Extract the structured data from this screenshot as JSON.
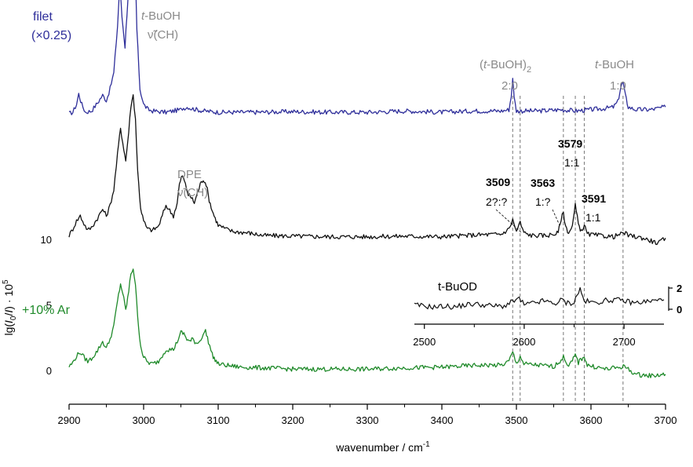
{
  "chart_data": {
    "type": "line",
    "xlabel": "wavenumber / cm",
    "xlabel_sup": "-1",
    "ylabel": {
      "pre": "lg(",
      "i0": "I",
      "sub0": "0",
      "mid": "/",
      "i": "I",
      "post": ") · 10",
      "sup": "5"
    },
    "xlim": [
      2900,
      3700
    ],
    "xticks": [
      "2900",
      "3000",
      "3100",
      "3200",
      "3300",
      "3400",
      "3500",
      "3600",
      "3700"
    ],
    "yticks": [
      "0",
      "5",
      "10"
    ],
    "grid": false,
    "series": [
      {
        "color": "#2e2e9a",
        "label_line1": "filet",
        "label_line2": "(×0.25)",
        "offset": 19.5,
        "points": [
          [
            2900,
            0.1
          ],
          [
            2905,
            0.2
          ],
          [
            2910,
            0.8
          ],
          [
            2913,
            1.6
          ],
          [
            2917,
            0.8
          ],
          [
            2922,
            0.2
          ],
          [
            2930,
            0.3
          ],
          [
            2938,
            0.9
          ],
          [
            2945,
            1.5
          ],
          [
            2950,
            1.1
          ],
          [
            2955,
            2.0
          ],
          [
            2960,
            3.2
          ],
          [
            2965,
            6.8
          ],
          [
            2968,
            10.0
          ],
          [
            2971,
            7.5
          ],
          [
            2975,
            5.2
          ],
          [
            2979,
            9.0
          ],
          [
            2983,
            12.8
          ],
          [
            2986,
            14.6
          ],
          [
            2988,
            13.0
          ],
          [
            2991,
            6.5
          ],
          [
            2995,
            2.0
          ],
          [
            3000,
            0.8
          ],
          [
            3006,
            0.4
          ],
          [
            3012,
            0.3
          ],
          [
            3030,
            0.2
          ],
          [
            3050,
            0.4
          ],
          [
            3052,
            0.5
          ],
          [
            3060,
            0.6
          ],
          [
            3063,
            0.5
          ],
          [
            3080,
            0.3
          ],
          [
            3100,
            0.2
          ],
          [
            3150,
            0.2
          ],
          [
            3200,
            0.25
          ],
          [
            3250,
            0.2
          ],
          [
            3300,
            0.2
          ],
          [
            3350,
            0.3
          ],
          [
            3400,
            0.2
          ],
          [
            3440,
            0.3
          ],
          [
            3480,
            0.3
          ],
          [
            3490,
            0.4
          ],
          [
            3493,
            1.4
          ],
          [
            3495,
            2.9
          ],
          [
            3497,
            1.3
          ],
          [
            3500,
            0.3
          ],
          [
            3530,
            0.3
          ],
          [
            3560,
            0.4
          ],
          [
            3580,
            0.3
          ],
          [
            3600,
            0.4
          ],
          [
            3620,
            0.5
          ],
          [
            3630,
            0.6
          ],
          [
            3636,
            1.0
          ],
          [
            3640,
            2.1
          ],
          [
            3643,
            2.5
          ],
          [
            3646,
            1.5
          ],
          [
            3650,
            0.6
          ],
          [
            3660,
            0.4
          ],
          [
            3680,
            0.4
          ],
          [
            3700,
            0.6
          ]
        ]
      },
      {
        "color": "#111111",
        "offset": 10,
        "points": [
          [
            2900,
            0.3
          ],
          [
            2905,
            0.8
          ],
          [
            2910,
            1.4
          ],
          [
            2915,
            1.8
          ],
          [
            2920,
            1.2
          ],
          [
            2925,
            0.7
          ],
          [
            2930,
            0.9
          ],
          [
            2938,
            1.6
          ],
          [
            2945,
            2.3
          ],
          [
            2950,
            1.8
          ],
          [
            2955,
            2.6
          ],
          [
            2960,
            3.8
          ],
          [
            2965,
            6.5
          ],
          [
            2969,
            8.5
          ],
          [
            2972,
            7.4
          ],
          [
            2976,
            6.0
          ],
          [
            2980,
            8.2
          ],
          [
            2983,
            10.2
          ],
          [
            2986,
            11.0
          ],
          [
            2989,
            9.2
          ],
          [
            2992,
            5.2
          ],
          [
            2996,
            2.4
          ],
          [
            3000,
            1.4
          ],
          [
            3005,
            0.8
          ],
          [
            3012,
            0.7
          ],
          [
            3020,
            1.0
          ],
          [
            3030,
            2.6
          ],
          [
            3040,
            1.8
          ],
          [
            3045,
            2.8
          ],
          [
            3048,
            4.2
          ],
          [
            3052,
            4.9
          ],
          [
            3056,
            4.2
          ],
          [
            3060,
            3.4
          ],
          [
            3064,
            3.2
          ],
          [
            3068,
            2.8
          ],
          [
            3072,
            3.5
          ],
          [
            3076,
            4.2
          ],
          [
            3080,
            4.6
          ],
          [
            3084,
            4.2
          ],
          [
            3088,
            3.0
          ],
          [
            3092,
            2.2
          ],
          [
            3096,
            1.6
          ],
          [
            3100,
            1.1
          ],
          [
            3110,
            0.8
          ],
          [
            3120,
            0.6
          ],
          [
            3140,
            0.5
          ],
          [
            3160,
            0.3
          ],
          [
            3200,
            0.25
          ],
          [
            3250,
            0.2
          ],
          [
            3300,
            0.2
          ],
          [
            3350,
            0.25
          ],
          [
            3400,
            0.2
          ],
          [
            3450,
            0.35
          ],
          [
            3480,
            0.4
          ],
          [
            3490,
            0.8
          ],
          [
            3495,
            1.5
          ],
          [
            3500,
            0.6
          ],
          [
            3505,
            1.3
          ],
          [
            3510,
            0.5
          ],
          [
            3520,
            0.3
          ],
          [
            3540,
            0.3
          ],
          [
            3550,
            0.4
          ],
          [
            3556,
            0.5
          ],
          [
            3560,
            1.6
          ],
          [
            3563,
            2.0
          ],
          [
            3566,
            1.0
          ],
          [
            3570,
            0.5
          ],
          [
            3575,
            1.0
          ],
          [
            3579,
            2.6
          ],
          [
            3583,
            1.2
          ],
          [
            3587,
            0.6
          ],
          [
            3591,
            1.1
          ],
          [
            3595,
            0.4
          ],
          [
            3610,
            0.3
          ],
          [
            3630,
            0.2
          ],
          [
            3645,
            0.5
          ],
          [
            3650,
            0.3
          ],
          [
            3670,
            0.1
          ],
          [
            3690,
            -0.3
          ],
          [
            3700,
            0.1
          ]
        ]
      },
      {
        "color": "#1f8a2a",
        "label": "+10% Ar",
        "offset": 0,
        "points": [
          [
            2900,
            0.3
          ],
          [
            2905,
            0.6
          ],
          [
            2910,
            1.1
          ],
          [
            2915,
            1.4
          ],
          [
            2920,
            1.0
          ],
          [
            2925,
            0.7
          ],
          [
            2930,
            0.9
          ],
          [
            2938,
            1.5
          ],
          [
            2945,
            2.2
          ],
          [
            2950,
            1.7
          ],
          [
            2955,
            2.4
          ],
          [
            2960,
            3.4
          ],
          [
            2965,
            5.3
          ],
          [
            2969,
            6.6
          ],
          [
            2972,
            5.9
          ],
          [
            2976,
            4.6
          ],
          [
            2980,
            6.0
          ],
          [
            2983,
            7.4
          ],
          [
            2986,
            7.8
          ],
          [
            2989,
            6.6
          ],
          [
            2992,
            4.0
          ],
          [
            2996,
            1.9
          ],
          [
            3000,
            1.0
          ],
          [
            3006,
            0.6
          ],
          [
            3012,
            0.5
          ],
          [
            3020,
            0.7
          ],
          [
            3030,
            1.6
          ],
          [
            3040,
            1.6
          ],
          [
            3045,
            2.2
          ],
          [
            3050,
            2.9
          ],
          [
            3054,
            2.8
          ],
          [
            3058,
            2.4
          ],
          [
            3062,
            2.2
          ],
          [
            3066,
            2.4
          ],
          [
            3070,
            2.1
          ],
          [
            3075,
            2.2
          ],
          [
            3080,
            2.8
          ],
          [
            3083,
            3.0
          ],
          [
            3087,
            2.2
          ],
          [
            3092,
            1.2
          ],
          [
            3096,
            0.8
          ],
          [
            3100,
            0.5
          ],
          [
            3110,
            0.4
          ],
          [
            3130,
            0.25
          ],
          [
            3160,
            0.2
          ],
          [
            3200,
            0.1
          ],
          [
            3250,
            0.1
          ],
          [
            3300,
            0.1
          ],
          [
            3350,
            0.2
          ],
          [
            3400,
            0.25
          ],
          [
            3450,
            0.4
          ],
          [
            3480,
            0.4
          ],
          [
            3490,
            0.7
          ],
          [
            3495,
            1.4
          ],
          [
            3500,
            0.5
          ],
          [
            3505,
            1.1
          ],
          [
            3510,
            0.5
          ],
          [
            3530,
            0.4
          ],
          [
            3550,
            0.3
          ],
          [
            3560,
            0.8
          ],
          [
            3563,
            1.0
          ],
          [
            3570,
            0.4
          ],
          [
            3575,
            0.7
          ],
          [
            3579,
            1.2
          ],
          [
            3583,
            0.6
          ],
          [
            3591,
            1.1
          ],
          [
            3595,
            0.4
          ],
          [
            3620,
            0.1
          ],
          [
            3645,
            0.3
          ],
          [
            3660,
            -0.3
          ],
          [
            3680,
            -0.4
          ],
          [
            3700,
            -0.3
          ]
        ]
      }
    ],
    "annotations": {
      "tbuoh_ch": {
        "line1": "t",
        "line1b": "-BuOH",
        "line2": "ν̃(CH)"
      },
      "dpe_ch": {
        "line1": "DPE",
        "line2": "ν̃(CH)"
      },
      "dimer": {
        "line1a": "(",
        "line1b": "t",
        "line1c": "-BuOH)",
        "line1sub": "2",
        "line2": "2:0"
      },
      "monomer": {
        "line1a": "t",
        "line1b": "-BuOH",
        "line2": "1:0"
      },
      "p3509": {
        "value": "3509",
        "ratio": "2?:?"
      },
      "p3563": {
        "value": "3563",
        "ratio": "1:?"
      },
      "p3579": {
        "value": "3579",
        "ratio": "1:1"
      },
      "p3591": {
        "value": "3591",
        "ratio": "1:1"
      },
      "dashed_positions": [
        3495,
        3505,
        3563,
        3579,
        3591,
        3643
      ]
    },
    "inset": {
      "label": "t-BuOD",
      "xlim": [
        2490,
        2740
      ],
      "xticks": [
        "2500",
        "2600",
        "2700"
      ],
      "yticks": [
        "0",
        "2"
      ],
      "color": "#111111",
      "points": [
        [
          2490,
          0.4
        ],
        [
          2500,
          0.3
        ],
        [
          2510,
          0.2
        ],
        [
          2520,
          0.3
        ],
        [
          2530,
          0.2
        ],
        [
          2540,
          0.4
        ],
        [
          2550,
          0.5
        ],
        [
          2560,
          0.4
        ],
        [
          2570,
          0.3
        ],
        [
          2580,
          0.3
        ],
        [
          2590,
          0.8
        ],
        [
          2595,
          1.0
        ],
        [
          2600,
          0.4
        ],
        [
          2610,
          0.6
        ],
        [
          2620,
          0.8
        ],
        [
          2630,
          0.5
        ],
        [
          2638,
          0.9
        ],
        [
          2642,
          0.6
        ],
        [
          2650,
          0.6
        ],
        [
          2653,
          1.4
        ],
        [
          2656,
          1.9
        ],
        [
          2660,
          0.8
        ],
        [
          2670,
          0.6
        ],
        [
          2680,
          0.8
        ],
        [
          2690,
          0.9
        ],
        [
          2700,
          0.8
        ],
        [
          2710,
          0.6
        ],
        [
          2720,
          0.7
        ],
        [
          2730,
          0.8
        ],
        [
          2740,
          0.9
        ]
      ]
    }
  }
}
